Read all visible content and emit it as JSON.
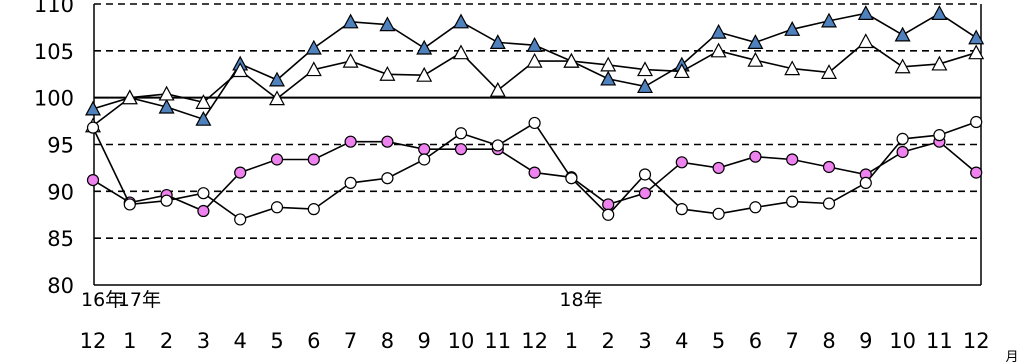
{
  "chart_data": {
    "type": "line",
    "ylim": [
      80,
      110
    ],
    "yticks": [
      80,
      85,
      90,
      95,
      100,
      105,
      110
    ],
    "month_labels": [
      "12",
      "1",
      "2",
      "3",
      "4",
      "5",
      "6",
      "7",
      "8",
      "9",
      "10",
      "11",
      "12",
      "1",
      "2",
      "3",
      "4",
      "5",
      "6",
      "7",
      "8",
      "9",
      "10",
      "11",
      "12"
    ],
    "year_labels": [
      {
        "text": "16年",
        "index": 0
      },
      {
        "text": "17年",
        "index": 1
      },
      {
        "text": "18年",
        "index": 13
      }
    ],
    "unit_label": "月",
    "reference_line": 100,
    "grid": "dashed-horizontal",
    "colors": {
      "blue_triangle": "#4f81bd",
      "pink_circle": "#ee82ee",
      "line": "#000000"
    },
    "series": [
      {
        "marker": "blue-triangle",
        "values": [
          98.8,
          100.0,
          99.0,
          97.7,
          103.6,
          101.9,
          105.3,
          108.1,
          107.8,
          105.3,
          108.1,
          105.9,
          105.6,
          103.9,
          102.0,
          101.2,
          103.5,
          107.0,
          105.9,
          107.3,
          108.2,
          109.0,
          106.7,
          109.0,
          106.4
        ]
      },
      {
        "marker": "white-triangle",
        "values": [
          97.0,
          100.0,
          100.4,
          99.5,
          102.9,
          99.9,
          103.0,
          103.9,
          102.5,
          102.4,
          104.8,
          100.8,
          103.9,
          103.9,
          103.5,
          103.0,
          102.8,
          105.0,
          104.0,
          103.1,
          102.7,
          106.0,
          103.3,
          103.6,
          104.8
        ]
      },
      {
        "marker": "pink-circle",
        "values": [
          91.2,
          88.8,
          89.6,
          87.9,
          92.0,
          93.4,
          93.4,
          95.3,
          95.3,
          94.5,
          94.5,
          94.5,
          92.0,
          91.5,
          88.6,
          89.8,
          93.1,
          92.5,
          93.7,
          93.4,
          92.6,
          91.8,
          94.2,
          95.3,
          92.0
        ]
      },
      {
        "marker": "white-circle",
        "values": [
          96.8,
          88.6,
          89.0,
          89.8,
          87.0,
          88.3,
          88.1,
          90.9,
          91.4,
          93.4,
          96.2,
          94.9,
          97.3,
          91.4,
          87.5,
          91.8,
          88.1,
          87.6,
          88.3,
          88.9,
          88.7,
          90.9,
          95.6,
          96.0,
          97.4
        ]
      }
    ]
  }
}
